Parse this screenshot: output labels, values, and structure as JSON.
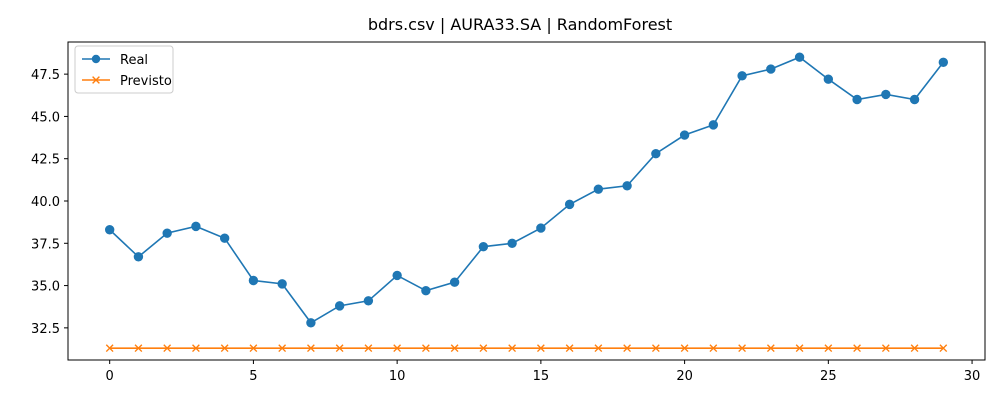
{
  "chart_data": {
    "type": "line",
    "title": "bdrs.csv | AURA33.SA | RandomForest",
    "xlabel": "",
    "ylabel": "",
    "xlim": [
      -1.45,
      30.45
    ],
    "ylim": [
      30.6,
      49.4
    ],
    "xticks": [
      0,
      5,
      10,
      15,
      20,
      25,
      30
    ],
    "yticks": [
      32.5,
      35.0,
      37.5,
      40.0,
      42.5,
      45.0,
      47.5
    ],
    "ytick_labels": [
      "32.5",
      "35.0",
      "37.5",
      "40.0",
      "42.5",
      "45.0",
      "47.5"
    ],
    "legend_position": "top-left",
    "grid": false,
    "x": [
      0,
      1,
      2,
      3,
      4,
      5,
      6,
      7,
      8,
      9,
      10,
      11,
      12,
      13,
      14,
      15,
      16,
      17,
      18,
      19,
      20,
      21,
      22,
      23,
      24,
      25,
      26,
      27,
      28,
      29
    ],
    "series": [
      {
        "name": "Real",
        "color": "#1f77b4",
        "marker": "circle",
        "values": [
          38.3,
          36.7,
          38.1,
          38.5,
          37.8,
          35.3,
          35.1,
          32.8,
          33.8,
          34.1,
          35.6,
          34.7,
          35.2,
          37.3,
          37.5,
          38.4,
          39.8,
          40.7,
          40.9,
          42.8,
          43.9,
          44.5,
          47.4,
          47.8,
          48.5,
          47.2,
          46.0,
          46.3,
          46.0,
          48.2
        ]
      },
      {
        "name": "Previsto",
        "color": "#ff7f0e",
        "marker": "x",
        "values": [
          31.3,
          31.3,
          31.3,
          31.3,
          31.3,
          31.3,
          31.3,
          31.3,
          31.3,
          31.3,
          31.3,
          31.3,
          31.3,
          31.3,
          31.3,
          31.3,
          31.3,
          31.3,
          31.3,
          31.3,
          31.3,
          31.3,
          31.3,
          31.3,
          31.3,
          31.3,
          31.3,
          31.3,
          31.3,
          31.3
        ]
      }
    ]
  }
}
